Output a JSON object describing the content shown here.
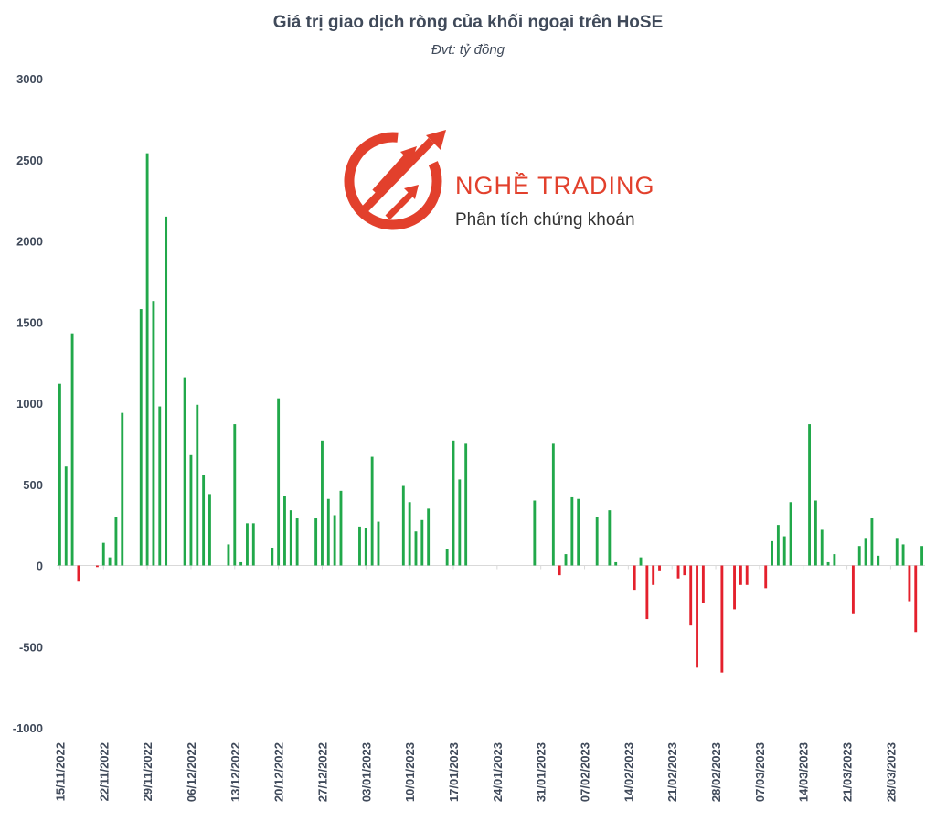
{
  "chart_data": {
    "type": "bar",
    "title": "Giá trị giao dịch ròng của khối ngoại trên HoSE",
    "subtitle": "Đvt: tỷ đồng",
    "ylim": [
      -1000,
      3000
    ],
    "y_ticks": [
      "3000",
      "2500",
      "2000",
      "1500",
      "1000",
      "500",
      "0",
      "-500",
      "-1000"
    ],
    "x_tick_labels": [
      "15/11/2022",
      "22/11/2022",
      "29/11/2022",
      "06/12/2022",
      "13/12/2022",
      "20/12/2022",
      "27/12/2022",
      "03/01/2023",
      "10/01/2023",
      "17/01/2023",
      "24/01/2023",
      "31/01/2023",
      "07/02/2023",
      "14/02/2023",
      "21/02/2023",
      "28/02/2023",
      "07/03/2023",
      "14/03/2023",
      "21/03/2023",
      "28/03/2023"
    ],
    "positive_color": "#21a84a",
    "negative_color": "#e4202c",
    "values": [
      1120,
      610,
      1430,
      -100,
      0,
      0,
      -10,
      140,
      50,
      300,
      940,
      0,
      0,
      1580,
      2540,
      1630,
      980,
      2150,
      0,
      0,
      1160,
      680,
      990,
      560,
      440,
      0,
      0,
      130,
      870,
      20,
      260,
      260,
      0,
      0,
      110,
      1030,
      430,
      340,
      290,
      0,
      0,
      290,
      770,
      410,
      310,
      460,
      0,
      0,
      240,
      230,
      670,
      270,
      0,
      0,
      0,
      490,
      390,
      210,
      280,
      350,
      0,
      0,
      100,
      770,
      530,
      750,
      0,
      0,
      0,
      0,
      0,
      0,
      0,
      0,
      0,
      0,
      400,
      0,
      0,
      750,
      -60,
      70,
      420,
      410,
      0,
      0,
      300,
      0,
      340,
      20,
      0,
      0,
      -150,
      50,
      -330,
      -120,
      -30,
      0,
      0,
      -80,
      -60,
      -370,
      -630,
      -230,
      0,
      0,
      -660,
      0,
      -270,
      -120,
      -120,
      0,
      0,
      -140,
      150,
      250,
      180,
      390,
      0,
      0,
      870,
      400,
      220,
      20,
      70,
      0,
      0,
      -300,
      120,
      170,
      290,
      60,
      0,
      0,
      170,
      130,
      -220,
      -410,
      120
    ]
  },
  "logo": {
    "brand": "NGHỀ TRADING",
    "tagline": "Phân tích chứng khoán",
    "color": "#e2402c"
  }
}
